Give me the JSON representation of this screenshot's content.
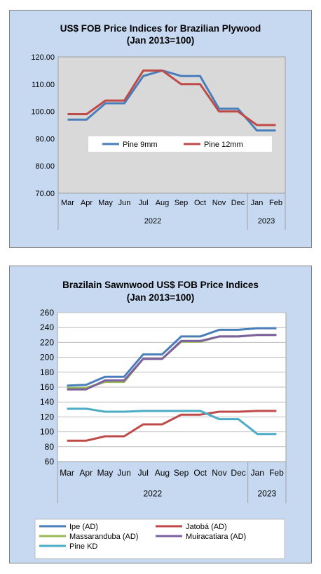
{
  "chart_data": [
    {
      "type": "line",
      "title": "US$ FOB Price Indices for Brazilian  Plywood",
      "subtitle": "(Jan 2013=100)",
      "categories": [
        "Mar",
        "Apr",
        "May",
        "Jun",
        "Jul",
        "Aug",
        "Sep",
        "Oct",
        "Nov",
        "Dec",
        "Jan",
        "Feb"
      ],
      "years": [
        {
          "label": "2022",
          "from": 0,
          "to": 9
        },
        {
          "label": "2023",
          "from": 10,
          "to": 11
        }
      ],
      "yticks": [
        "70.00",
        "80.00",
        "90.00",
        "100.00",
        "110.00",
        "120.00"
      ],
      "ylim": [
        70,
        120
      ],
      "plot_bg": "#d9d9d9",
      "grid": false,
      "legend": "inside-center",
      "series": [
        {
          "name": "Pine 9mm",
          "color": "#4a7ebb",
          "values": [
            97,
            97,
            103,
            103,
            113,
            115,
            113,
            113,
            101,
            101,
            93,
            93
          ]
        },
        {
          "name": "Pine 12mm",
          "color": "#be4b48",
          "values": [
            99,
            99,
            104,
            104,
            115,
            115,
            110,
            110,
            100,
            100,
            95,
            95
          ]
        }
      ]
    },
    {
      "type": "line",
      "title": "Brazilain Sawnwood US$ FOB Price Indices",
      "subtitle": "(Jan 2013=100)",
      "categories": [
        "Mar",
        "Apr",
        "May",
        "Jun",
        "Jul",
        "Aug",
        "Sep",
        "Oct",
        "Nov",
        "Dec",
        "Jan",
        "Feb"
      ],
      "years": [
        {
          "label": "2022",
          "from": 0,
          "to": 9
        },
        {
          "label": "2023",
          "from": 10,
          "to": 11
        }
      ],
      "yticks": [
        "60",
        "80",
        "100",
        "120",
        "140",
        "160",
        "180",
        "200",
        "220",
        "240",
        "260"
      ],
      "ylim": [
        60,
        260
      ],
      "plot_bg": "#ffffff",
      "grid": true,
      "legend": "bottom",
      "series": [
        {
          "name": "Ipe (AD)",
          "color": "#4a7ebb",
          "values": [
            162,
            163,
            174,
            174,
            204,
            204,
            228,
            228,
            237,
            237,
            239,
            239
          ]
        },
        {
          "name": "Jatobá (AD)",
          "color": "#be4b48",
          "values": [
            88,
            88,
            94,
            94,
            110,
            110,
            123,
            123,
            127,
            127,
            128,
            128
          ]
        },
        {
          "name": "Massaranduba (AD)",
          "color": "#98b954",
          "values": [
            159,
            159,
            167,
            167,
            198,
            198,
            221,
            221,
            228,
            228,
            230,
            230
          ]
        },
        {
          "name": "Muiracatiara (AD)",
          "color": "#7d60a0",
          "values": [
            157,
            157,
            169,
            169,
            198,
            198,
            222,
            222,
            228,
            228,
            230,
            230
          ]
        },
        {
          "name": "Pine KD",
          "color": "#4bacc6",
          "values": [
            131,
            131,
            127,
            127,
            128,
            128,
            128,
            128,
            117,
            117,
            97,
            97
          ]
        }
      ]
    }
  ]
}
